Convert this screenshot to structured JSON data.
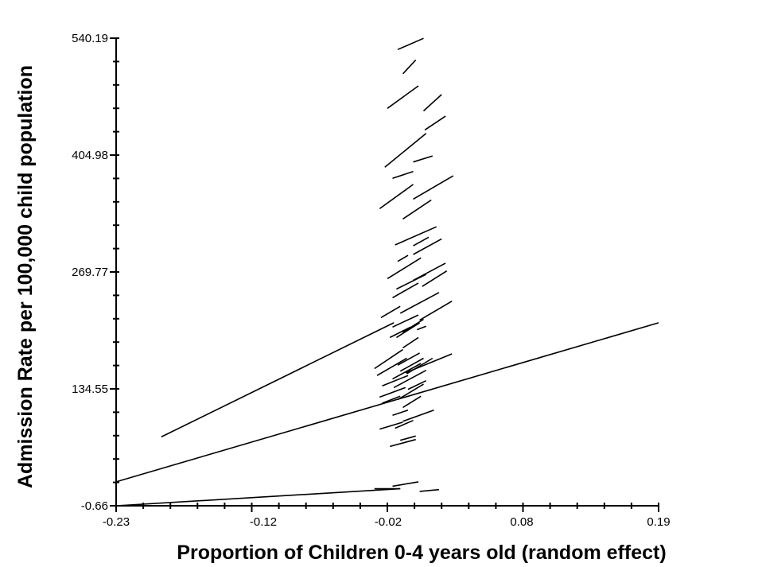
{
  "chart_data": {
    "type": "line",
    "xlabel": "Proportion of Children 0-4 years old (random effect)",
    "ylabel": "Admission Rate per 100,000 child population",
    "xlim": [
      -0.23,
      0.19
    ],
    "ylim": [
      -0.66,
      540.19
    ],
    "x_ticks": [
      "-0.23",
      "-0.12",
      "-0.02",
      "0.08",
      "0.19"
    ],
    "x_tick_values": [
      -0.23,
      -0.12,
      -0.02,
      0.08,
      0.19
    ],
    "y_ticks": [
      "-0.66",
      "134.55",
      "269.77",
      "404.98",
      "540.19"
    ],
    "y_tick_values": [
      -0.66,
      134.55,
      269.77,
      404.98,
      540.19
    ],
    "grid": false,
    "segments": [
      {
        "x": [
          -0.23,
          0.19
        ],
        "y": [
          27,
          211
        ]
      },
      {
        "x": [
          -0.23,
          -0.01
        ],
        "y": [
          -0.66,
          19
        ]
      },
      {
        "x": [
          -0.195,
          -0.015
        ],
        "y": [
          79,
          211
        ]
      },
      {
        "x": [
          -0.012,
          0.008
        ],
        "y": [
          527,
          540
        ]
      },
      {
        "x": [
          -0.008,
          0.002
        ],
        "y": [
          499,
          515
        ]
      },
      {
        "x": [
          -0.02,
          0.004
        ],
        "y": [
          459,
          485
        ]
      },
      {
        "x": [
          0.008,
          0.022
        ],
        "y": [
          456,
          475
        ]
      },
      {
        "x": [
          0.009,
          0.025
        ],
        "y": [
          434,
          450
        ]
      },
      {
        "x": [
          -0.022,
          0.01
        ],
        "y": [
          391,
          430
        ]
      },
      {
        "x": [
          0.0,
          0.015
        ],
        "y": [
          397,
          404
        ]
      },
      {
        "x": [
          -0.016,
          0.0
        ],
        "y": [
          378,
          386
        ]
      },
      {
        "x": [
          -0.026,
          0.0
        ],
        "y": [
          343,
          371
        ]
      },
      {
        "x": [
          0.0,
          0.031
        ],
        "y": [
          354,
          381
        ]
      },
      {
        "x": [
          -0.008,
          0.014
        ],
        "y": [
          331,
          353
        ]
      },
      {
        "x": [
          -0.014,
          0.018
        ],
        "y": [
          301,
          322
        ]
      },
      {
        "x": [
          -0.012,
          -0.004
        ],
        "y": [
          282,
          289
        ]
      },
      {
        "x": [
          0.0,
          0.022
        ],
        "y": [
          290,
          308
        ]
      },
      {
        "x": [
          0.0,
          0.012
        ],
        "y": [
          300,
          310
        ]
      },
      {
        "x": [
          -0.02,
          0.006
        ],
        "y": [
          262,
          286
        ]
      },
      {
        "x": [
          -0.013,
          0.01
        ],
        "y": [
          250,
          267
        ]
      },
      {
        "x": [
          -0.016,
          0.004
        ],
        "y": [
          240,
          257
        ]
      },
      {
        "x": [
          0.0,
          0.025
        ],
        "y": [
          260,
          280
        ]
      },
      {
        "x": [
          -0.01,
          0.02
        ],
        "y": [
          222,
          246
        ]
      },
      {
        "x": [
          0.007,
          0.026
        ],
        "y": [
          253,
          271
        ]
      },
      {
        "x": [
          0.005,
          0.03
        ],
        "y": [
          214,
          236
        ]
      },
      {
        "x": [
          -0.025,
          -0.01
        ],
        "y": [
          217,
          230
        ]
      },
      {
        "x": [
          -0.016,
          0.004
        ],
        "y": [
          206,
          220
        ]
      },
      {
        "x": [
          -0.013,
          0.005
        ],
        "y": [
          194,
          211
        ]
      },
      {
        "x": [
          -0.008,
          0.008
        ],
        "y": [
          200,
          215
        ]
      },
      {
        "x": [
          -0.018,
          -0.002
        ],
        "y": [
          194,
          206
        ]
      },
      {
        "x": [
          0.003,
          0.01
        ],
        "y": [
          203,
          207
        ]
      },
      {
        "x": [
          -0.008,
          0.004
        ],
        "y": [
          182,
          194
        ]
      },
      {
        "x": [
          -0.03,
          -0.008
        ],
        "y": [
          158,
          180
        ]
      },
      {
        "x": [
          -0.028,
          -0.005
        ],
        "y": [
          150,
          170
        ]
      },
      {
        "x": [
          -0.012,
          0.005
        ],
        "y": [
          162,
          176
        ]
      },
      {
        "x": [
          -0.016,
          0.006
        ],
        "y": [
          146,
          164
        ]
      },
      {
        "x": [
          -0.01,
          0.008
        ],
        "y": [
          155,
          170
        ]
      },
      {
        "x": [
          -0.006,
          0.03
        ],
        "y": [
          153,
          175
        ]
      },
      {
        "x": [
          -0.024,
          -0.004
        ],
        "y": [
          138,
          150
        ]
      },
      {
        "x": [
          -0.015,
          0.01
        ],
        "y": [
          136,
          156
        ]
      },
      {
        "x": [
          -0.005,
          0.015
        ],
        "y": [
          152,
          170
        ]
      },
      {
        "x": [
          -0.026,
          -0.006
        ],
        "y": [
          125,
          136
        ]
      },
      {
        "x": [
          -0.012,
          0.008
        ],
        "y": [
          122,
          140
        ]
      },
      {
        "x": [
          -0.024,
          -0.01
        ],
        "y": [
          118,
          126
        ]
      },
      {
        "x": [
          -0.008,
          0.006
        ],
        "y": [
          113,
          126
        ]
      },
      {
        "x": [
          -0.004,
          0.01
        ],
        "y": [
          134,
          144
        ]
      },
      {
        "x": [
          -0.016,
          -0.004
        ],
        "y": [
          104,
          110
        ]
      },
      {
        "x": [
          -0.014,
          0.0
        ],
        "y": [
          89,
          98
        ]
      },
      {
        "x": [
          -0.008,
          0.016
        ],
        "y": [
          97,
          110
        ]
      },
      {
        "x": [
          -0.026,
          -0.008
        ],
        "y": [
          88,
          96
        ]
      },
      {
        "x": [
          -0.01,
          0.002
        ],
        "y": [
          75,
          80
        ]
      },
      {
        "x": [
          -0.018,
          0.002
        ],
        "y": [
          68,
          76
        ]
      },
      {
        "x": [
          -0.016,
          0.004
        ],
        "y": [
          22,
          27
        ]
      },
      {
        "x": [
          -0.03,
          -0.01
        ],
        "y": [
          19,
          19
        ]
      },
      {
        "x": [
          0.005,
          0.02
        ],
        "y": [
          16,
          18
        ]
      }
    ]
  }
}
